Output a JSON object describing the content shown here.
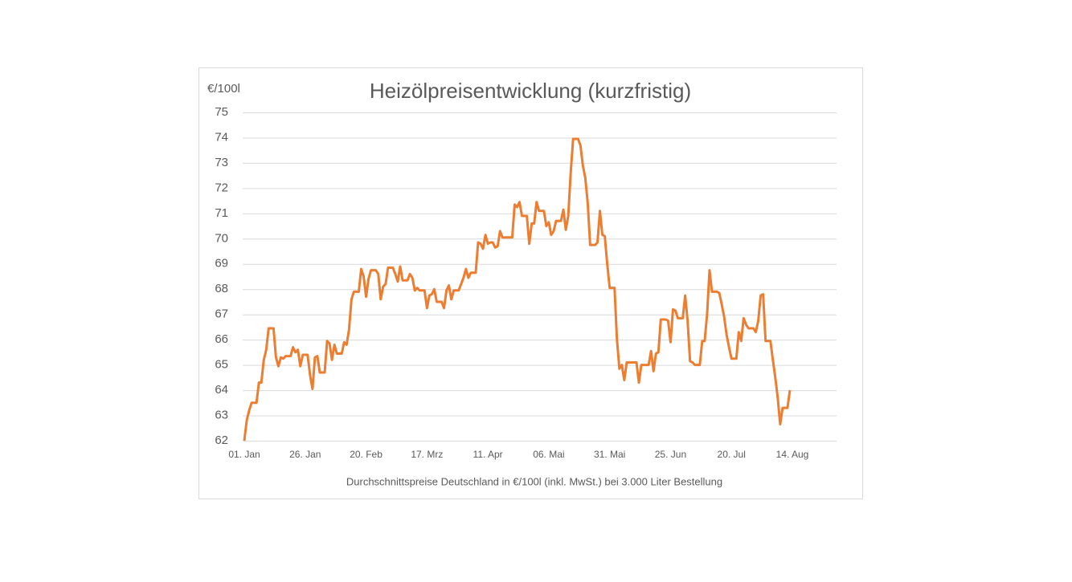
{
  "chart_data": {
    "type": "line",
    "title": "Heizölpreisentwicklung (kurzfristig)",
    "y_label": "€/100l",
    "x_label": "Durchschnittspreise Deutschland in €/100l (inkl. MwSt.) bei 3.000 Liter Bestellung",
    "color": "#ed7d31",
    "ylim": [
      62,
      75
    ],
    "yticks": [
      62,
      63,
      64,
      65,
      66,
      67,
      68,
      69,
      70,
      71,
      72,
      73,
      74,
      75
    ],
    "grid": true,
    "categories": [
      "01. Jan",
      null,
      null,
      null,
      null,
      null,
      null,
      null,
      null,
      null,
      null,
      null,
      null,
      null,
      null,
      null,
      null,
      null,
      null,
      null,
      null,
      null,
      null,
      null,
      null,
      "26. Jan",
      null,
      null,
      null,
      null,
      null,
      null,
      null,
      null,
      null,
      null,
      null,
      null,
      null,
      null,
      null,
      null,
      null,
      null,
      null,
      null,
      null,
      null,
      null,
      null,
      "20. Feb",
      null,
      null,
      null,
      null,
      null,
      null,
      null,
      null,
      null,
      null,
      null,
      null,
      null,
      null,
      null,
      null,
      null,
      null,
      null,
      null,
      null,
      null,
      null,
      null,
      "17. Mrz",
      null,
      null,
      null,
      null,
      null,
      null,
      null,
      null,
      null,
      null,
      null,
      null,
      null,
      null,
      null,
      null,
      null,
      null,
      null,
      null,
      null,
      null,
      null,
      null,
      "11. Apr",
      null,
      null,
      null,
      null,
      null,
      null,
      null,
      null,
      null,
      null,
      null,
      null,
      null,
      null,
      null,
      null,
      null,
      null,
      null,
      null,
      null,
      null,
      null,
      null,
      "06. Mai",
      null,
      null,
      null,
      null,
      null,
      null,
      null,
      null,
      null,
      null,
      null,
      null,
      null,
      null,
      null,
      null,
      null,
      null,
      null,
      null,
      null,
      null,
      null,
      null,
      "31. Mai",
      null,
      null,
      null,
      null,
      null,
      null,
      null,
      null,
      null,
      null,
      null,
      null,
      null,
      null,
      null,
      null,
      null,
      null,
      null,
      null,
      null,
      null,
      null,
      null,
      "25. Jun",
      null,
      null,
      null,
      null,
      null,
      null,
      null,
      null,
      null,
      null,
      null,
      null,
      null,
      null,
      null,
      null,
      null,
      null,
      null,
      null,
      null,
      null,
      null,
      null,
      "20. Jul",
      null,
      null,
      null,
      null,
      null,
      null,
      null,
      null,
      null,
      null,
      null,
      null,
      null,
      null,
      null,
      null,
      null,
      null,
      null,
      null,
      null,
      null,
      null,
      null,
      "14. Aug"
    ],
    "values": [
      62.0,
      62.8,
      63.2,
      63.5,
      63.5,
      63.5,
      64.3,
      64.3,
      65.2,
      65.6,
      66.45,
      66.45,
      66.45,
      65.3,
      64.95,
      65.3,
      65.25,
      65.35,
      65.35,
      65.35,
      65.7,
      65.5,
      65.6,
      64.95,
      65.4,
      65.4,
      65.4,
      64.6,
      64.05,
      65.3,
      65.35,
      64.7,
      64.7,
      64.7,
      65.95,
      65.85,
      65.2,
      65.8,
      65.45,
      65.45,
      65.45,
      65.9,
      65.8,
      66.4,
      67.6,
      67.9,
      67.9,
      67.9,
      68.8,
      68.5,
      67.7,
      68.4,
      68.75,
      68.75,
      68.75,
      68.6,
      67.6,
      68.1,
      68.2,
      68.85,
      68.85,
      68.85,
      68.6,
      68.3,
      68.9,
      68.35,
      68.35,
      68.35,
      68.6,
      68.45,
      67.95,
      68.05,
      67.95,
      67.95,
      67.95,
      67.25,
      67.75,
      67.8,
      68.0,
      67.5,
      67.5,
      67.5,
      67.25,
      67.95,
      68.15,
      67.6,
      67.95,
      67.95,
      67.95,
      68.2,
      68.45,
      68.8,
      68.45,
      68.65,
      68.65,
      68.65,
      69.85,
      69.8,
      69.6,
      70.15,
      69.8,
      69.85,
      69.85,
      69.65,
      69.7,
      70.3,
      70.05,
      70.05,
      70.05,
      70.05,
      70.05,
      71.35,
      71.25,
      71.45,
      70.9,
      70.9,
      70.9,
      69.8,
      70.6,
      70.6,
      71.45,
      71.1,
      71.1,
      71.1,
      70.5,
      70.65,
      70.15,
      70.3,
      70.7,
      70.7,
      70.7,
      71.15,
      70.35,
      70.9,
      72.6,
      73.95,
      73.95,
      73.95,
      73.7,
      72.9,
      72.4,
      71.4,
      69.75,
      69.75,
      69.75,
      69.85,
      71.1,
      70.15,
      70.1,
      69.0,
      68.05,
      68.05,
      68.05,
      66.0,
      64.85,
      65.0,
      64.4,
      65.1,
      65.1,
      65.1,
      65.1,
      65.1,
      64.3,
      65.0,
      65.0,
      65.0,
      65.0,
      65.55,
      64.75,
      65.45,
      65.5,
      66.8,
      66.8,
      66.8,
      66.75,
      65.9,
      67.2,
      67.15,
      66.85,
      66.85,
      66.85,
      67.75,
      66.75,
      65.15,
      65.1,
      65.0,
      65.0,
      65.0,
      65.95,
      65.95,
      67.0,
      68.75,
      67.9,
      67.9,
      67.9,
      67.85,
      67.4,
      66.9,
      66.2,
      65.7,
      65.25,
      65.25,
      65.25,
      66.3,
      65.95,
      66.85,
      66.6,
      66.45,
      66.45,
      66.45,
      66.3,
      66.75,
      67.75,
      67.8,
      65.95,
      65.95,
      65.95,
      65.2,
      64.5,
      63.7,
      62.65,
      63.3,
      63.3,
      63.3,
      64.0,
      null
    ]
  }
}
